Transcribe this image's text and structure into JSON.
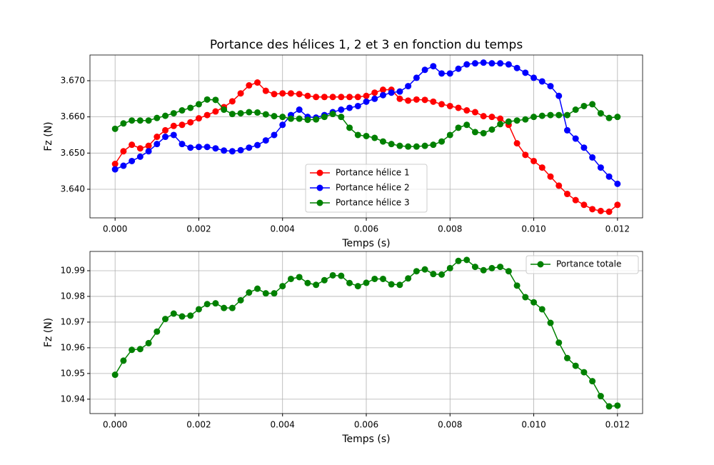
{
  "chart_data": [
    {
      "type": "line",
      "title": "Portance des hélices 1, 2 et 3 en fonction du temps",
      "xlabel": "Temps (s)",
      "ylabel": "Fz (N)",
      "x": [
        0,
        0.0002,
        0.0004,
        0.0006,
        0.0008,
        0.001,
        0.0012,
        0.0014,
        0.0016,
        0.0018,
        0.002,
        0.0022,
        0.0024,
        0.0026,
        0.0028,
        0.003,
        0.0032,
        0.0034,
        0.0036,
        0.0038,
        0.004,
        0.0042,
        0.0044,
        0.0046,
        0.0048,
        0.005,
        0.0052,
        0.0054,
        0.0056,
        0.0058,
        0.006,
        0.0062,
        0.0064,
        0.0066,
        0.0068,
        0.007,
        0.0072,
        0.0074,
        0.0076,
        0.0078,
        0.008,
        0.0082,
        0.0084,
        0.0086,
        0.0088,
        0.009,
        0.0092,
        0.0094,
        0.0096,
        0.0098,
        0.01,
        0.0102,
        0.0104,
        0.0106,
        0.0108,
        0.011,
        0.0112,
        0.0114,
        0.0116,
        0.0118,
        0.012
      ],
      "series": [
        {
          "name": "Portance hélice 1",
          "color": "#ff0000",
          "values": [
            3.647,
            3.6505,
            3.6523,
            3.6513,
            3.652,
            3.6545,
            3.6563,
            3.6575,
            3.6578,
            3.6585,
            3.6596,
            3.6605,
            3.6615,
            3.6627,
            3.6643,
            3.6665,
            3.6687,
            3.6695,
            3.6672,
            3.6663,
            3.6665,
            3.6665,
            3.6663,
            3.6658,
            3.6655,
            3.6655,
            3.6655,
            3.6655,
            3.6655,
            3.6655,
            3.6658,
            3.6667,
            3.6675,
            3.6675,
            3.665,
            3.6645,
            3.6648,
            3.6647,
            3.6642,
            3.6635,
            3.663,
            3.6625,
            3.6618,
            3.6613,
            3.6602,
            3.66,
            3.6595,
            3.6578,
            3.6527,
            3.6495,
            3.6478,
            3.646,
            3.6435,
            3.641,
            3.6387,
            3.637,
            3.6357,
            3.6345,
            3.634,
            3.6338,
            3.6357
          ]
        },
        {
          "name": "Portance hélice 2",
          "color": "#0000ff",
          "values": [
            3.6455,
            3.6465,
            3.6478,
            3.649,
            3.6505,
            3.6525,
            3.6545,
            3.655,
            3.6525,
            3.6515,
            3.6517,
            3.6517,
            3.6513,
            3.6507,
            3.6505,
            3.6508,
            3.6515,
            3.6522,
            3.6535,
            3.655,
            3.6578,
            3.6605,
            3.662,
            3.66,
            3.6598,
            3.6605,
            3.6613,
            3.662,
            3.6625,
            3.663,
            3.6642,
            3.665,
            3.666,
            3.6667,
            3.667,
            3.6685,
            3.6708,
            3.673,
            3.674,
            3.672,
            3.672,
            3.6733,
            3.6745,
            3.6748,
            3.675,
            3.6748,
            3.6748,
            3.6745,
            3.6735,
            3.6722,
            3.6708,
            3.6698,
            3.6685,
            3.6658,
            3.6563,
            3.654,
            3.6515,
            3.6488,
            3.646,
            3.6435,
            3.6415
          ]
        },
        {
          "name": "Portance hélice 3",
          "color": "#008000",
          "values": [
            3.6567,
            3.6582,
            3.659,
            3.659,
            3.659,
            3.6597,
            3.6603,
            3.661,
            3.6618,
            3.6625,
            3.6635,
            3.6648,
            3.6647,
            3.662,
            3.6608,
            3.661,
            3.6613,
            3.6612,
            3.6607,
            3.6602,
            3.66,
            3.6595,
            3.6595,
            3.6592,
            3.6593,
            3.66,
            3.6608,
            3.66,
            3.657,
            3.655,
            3.6547,
            3.6542,
            3.6532,
            3.6525,
            3.652,
            3.6518,
            3.6518,
            3.652,
            3.6523,
            3.6532,
            3.655,
            3.657,
            3.6578,
            3.6558,
            3.6555,
            3.6565,
            3.658,
            3.6587,
            3.659,
            3.6593,
            3.66,
            3.6603,
            3.6605,
            3.6605,
            3.6605,
            3.662,
            3.663,
            3.6635,
            3.661,
            3.6597,
            3.66
          ]
        }
      ],
      "xlim": [
        -0.0006,
        0.0126
      ],
      "ylim": [
        3.6321,
        3.6771
      ],
      "xticks": [
        {
          "value": 0,
          "label": "0.000"
        },
        {
          "value": 0.002,
          "label": "0.002"
        },
        {
          "value": 0.004,
          "label": "0.004"
        },
        {
          "value": 0.006,
          "label": "0.006"
        },
        {
          "value": 0.008,
          "label": "0.008"
        },
        {
          "value": 0.01,
          "label": "0.010"
        },
        {
          "value": 0.012,
          "label": "0.012"
        }
      ],
      "yticks": [
        {
          "value": 3.64,
          "label": "3.640"
        },
        {
          "value": 3.65,
          "label": "3.650"
        },
        {
          "value": 3.66,
          "label": "3.660"
        },
        {
          "value": 3.67,
          "label": "3.670"
        }
      ],
      "grid": true,
      "legend": "lower center"
    },
    {
      "type": "line",
      "xlabel": "Temps (s)",
      "ylabel": "Fz (N)",
      "x": [
        0,
        0.0002,
        0.0004,
        0.0006,
        0.0008,
        0.001,
        0.0012,
        0.0014,
        0.0016,
        0.0018,
        0.002,
        0.0022,
        0.0024,
        0.0026,
        0.0028,
        0.003,
        0.0032,
        0.0034,
        0.0036,
        0.0038,
        0.004,
        0.0042,
        0.0044,
        0.0046,
        0.0048,
        0.005,
        0.0052,
        0.0054,
        0.0056,
        0.0058,
        0.006,
        0.0062,
        0.0064,
        0.0066,
        0.0068,
        0.007,
        0.0072,
        0.0074,
        0.0076,
        0.0078,
        0.008,
        0.0082,
        0.0084,
        0.0086,
        0.0088,
        0.009,
        0.0092,
        0.0094,
        0.0096,
        0.0098,
        0.01,
        0.0102,
        0.0104,
        0.0106,
        0.0108,
        0.011,
        0.0112,
        0.0114,
        0.0116,
        0.0118,
        0.012
      ],
      "series": [
        {
          "name": "Portance totale",
          "color": "#008000",
          "values": [
            10.9495,
            10.955,
            10.9592,
            10.9595,
            10.9618,
            10.9663,
            10.9712,
            10.9733,
            10.9722,
            10.9725,
            10.975,
            10.977,
            10.9773,
            10.9755,
            10.9755,
            10.9785,
            10.9815,
            10.983,
            10.9812,
            10.9812,
            10.984,
            10.9868,
            10.9875,
            10.9852,
            10.9845,
            10.9863,
            10.9882,
            10.988,
            10.9852,
            10.984,
            10.9853,
            10.9868,
            10.9868,
            10.9847,
            10.9845,
            10.987,
            10.9898,
            10.9905,
            10.9887,
            10.9885,
            10.991,
            10.9938,
            10.9942,
            10.9915,
            10.9902,
            10.991,
            10.9915,
            10.9898,
            10.9842,
            10.9797,
            10.9777,
            10.975,
            10.9697,
            10.962,
            10.956,
            10.953,
            10.9505,
            10.947,
            10.9412,
            10.9372,
            10.9375
          ]
        }
      ],
      "xlim": [
        -0.0006,
        0.0126
      ],
      "ylim": [
        10.9344,
        10.9975
      ],
      "xticks": [
        {
          "value": 0,
          "label": "0.000"
        },
        {
          "value": 0.002,
          "label": "0.002"
        },
        {
          "value": 0.004,
          "label": "0.004"
        },
        {
          "value": 0.006,
          "label": "0.006"
        },
        {
          "value": 0.008,
          "label": "0.008"
        },
        {
          "value": 0.01,
          "label": "0.010"
        },
        {
          "value": 0.012,
          "label": "0.012"
        }
      ],
      "yticks": [
        10.94,
        10.95,
        10.96,
        10.97,
        10.98,
        10.99
      ],
      "grid": true,
      "legend": "upper right"
    }
  ]
}
